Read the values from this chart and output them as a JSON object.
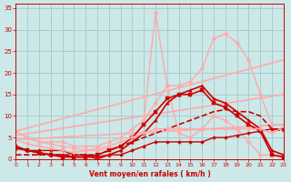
{
  "background_color": "#cce8e8",
  "grid_color": "#aacccc",
  "xlabel": "Vent moyen/en rafales ( km/h )",
  "xlabel_color": "#cc0000",
  "tick_color": "#cc0000",
  "xlim": [
    0,
    23
  ],
  "ylim": [
    0,
    36
  ],
  "yticks": [
    0,
    5,
    10,
    15,
    20,
    25,
    30,
    35
  ],
  "xticks": [
    0,
    1,
    2,
    3,
    4,
    5,
    6,
    7,
    8,
    9,
    10,
    11,
    12,
    13,
    14,
    15,
    16,
    17,
    18,
    19,
    20,
    21,
    22,
    23
  ],
  "lines": [
    {
      "x": [
        0,
        23
      ],
      "y": [
        6.5,
        23
      ],
      "color": "#ffaaaa",
      "lw": 1.2,
      "marker": "None",
      "markersize": 0,
      "style": "solid"
    },
    {
      "x": [
        0,
        23
      ],
      "y": [
        5.5,
        15
      ],
      "color": "#ffaaaa",
      "lw": 1.2,
      "marker": "None",
      "markersize": 0,
      "style": "solid"
    },
    {
      "x": [
        0,
        23
      ],
      "y": [
        4.5,
        8
      ],
      "color": "#ffaaaa",
      "lw": 1.2,
      "marker": "None",
      "markersize": 0,
      "style": "solid"
    },
    {
      "x": [
        0,
        1,
        2,
        3,
        4,
        5,
        6,
        7,
        8,
        9,
        10,
        11,
        12,
        13,
        14,
        15,
        16,
        17,
        18,
        19,
        20,
        21,
        22,
        23
      ],
      "y": [
        6.5,
        5,
        4,
        3.5,
        3,
        2.5,
        2,
        2,
        2.5,
        3,
        4,
        9,
        34,
        17,
        6,
        5,
        7,
        10,
        9,
        7,
        4,
        1,
        1,
        1
      ],
      "color": "#ffaaaa",
      "lw": 1.0,
      "marker": "D",
      "markersize": 2.5,
      "style": "solid"
    },
    {
      "x": [
        0,
        1,
        2,
        3,
        4,
        5,
        6,
        7,
        8,
        9,
        10,
        11,
        12,
        13,
        14,
        15,
        16,
        17,
        18,
        19,
        20,
        21,
        22,
        23
      ],
      "y": [
        6.5,
        5,
        4,
        4,
        4,
        3,
        3,
        3,
        4,
        5,
        7,
        9,
        13,
        17,
        17,
        18,
        21,
        28,
        29,
        27,
        23,
        15,
        8,
        8
      ],
      "color": "#ffaaaa",
      "lw": 1.0,
      "marker": "D",
      "markersize": 2.5,
      "style": "solid"
    },
    {
      "x": [
        0,
        1,
        2,
        3,
        4,
        5,
        6,
        7,
        8,
        9,
        10,
        11,
        12,
        13,
        14,
        15,
        16,
        17,
        18,
        19,
        20,
        21,
        22,
        23
      ],
      "y": [
        2.5,
        2,
        1.5,
        1,
        1,
        0.5,
        0.5,
        0.5,
        1,
        2,
        4,
        6,
        9,
        13,
        15,
        16,
        17,
        14,
        13,
        11,
        9,
        7,
        2,
        1
      ],
      "color": "#cc0000",
      "lw": 1.2,
      "marker": "^",
      "markersize": 2.5,
      "style": "solid"
    },
    {
      "x": [
        0,
        1,
        2,
        3,
        4,
        5,
        6,
        7,
        8,
        9,
        10,
        11,
        12,
        13,
        14,
        15,
        16,
        17,
        18,
        19,
        20,
        21,
        22,
        23
      ],
      "y": [
        3,
        2,
        1.5,
        1,
        0.5,
        0.5,
        0.5,
        1,
        2,
        3,
        5,
        8,
        11,
        14,
        15,
        15,
        16,
        13,
        12,
        10,
        8,
        6.5,
        1,
        0.5
      ],
      "color": "#cc0000",
      "lw": 1.2,
      "marker": "s",
      "markersize": 2.5,
      "style": "solid"
    },
    {
      "x": [
        0,
        1,
        2,
        3,
        4,
        5,
        6,
        7,
        8,
        9,
        10,
        11,
        12,
        13,
        14,
        15,
        16,
        17,
        18,
        19,
        20,
        21,
        22,
        23
      ],
      "y": [
        1,
        1,
        1,
        1,
        1,
        1,
        1,
        1,
        2,
        3,
        4,
        5,
        6,
        7,
        8,
        9,
        10,
        11,
        11.5,
        11,
        11,
        10,
        7,
        6.5
      ],
      "color": "#cc0000",
      "lw": 1.2,
      "marker": "None",
      "markersize": 0,
      "style": "dashed"
    },
    {
      "x": [
        0,
        1,
        2,
        3,
        4,
        5,
        6,
        7,
        8,
        9,
        10,
        11,
        12,
        13,
        14,
        15,
        16,
        17,
        18,
        19,
        20,
        21,
        22,
        23
      ],
      "y": [
        3,
        2,
        2,
        2,
        2,
        1,
        1,
        0,
        1,
        1,
        2,
        3,
        4,
        4,
        4,
        4,
        4,
        5,
        5,
        5.5,
        6,
        6.5,
        7,
        7
      ],
      "color": "#cc0000",
      "lw": 1.0,
      "marker": "D",
      "markersize": 2.0,
      "style": "solid"
    },
    {
      "x": [
        0,
        1,
        2,
        3,
        4,
        5,
        6,
        7,
        8,
        9,
        10,
        11,
        12,
        13,
        14,
        15,
        16,
        17,
        18,
        19,
        20,
        21,
        22,
        23
      ],
      "y": [
        4.5,
        3.5,
        3,
        2.5,
        2,
        1.5,
        2,
        2.5,
        3,
        4,
        5,
        6,
        7,
        7,
        7,
        7,
        7,
        7,
        7,
        7,
        7,
        7,
        6,
        7.5
      ],
      "color": "#ffaaaa",
      "lw": 1.0,
      "marker": "v",
      "markersize": 3,
      "style": "solid"
    }
  ]
}
